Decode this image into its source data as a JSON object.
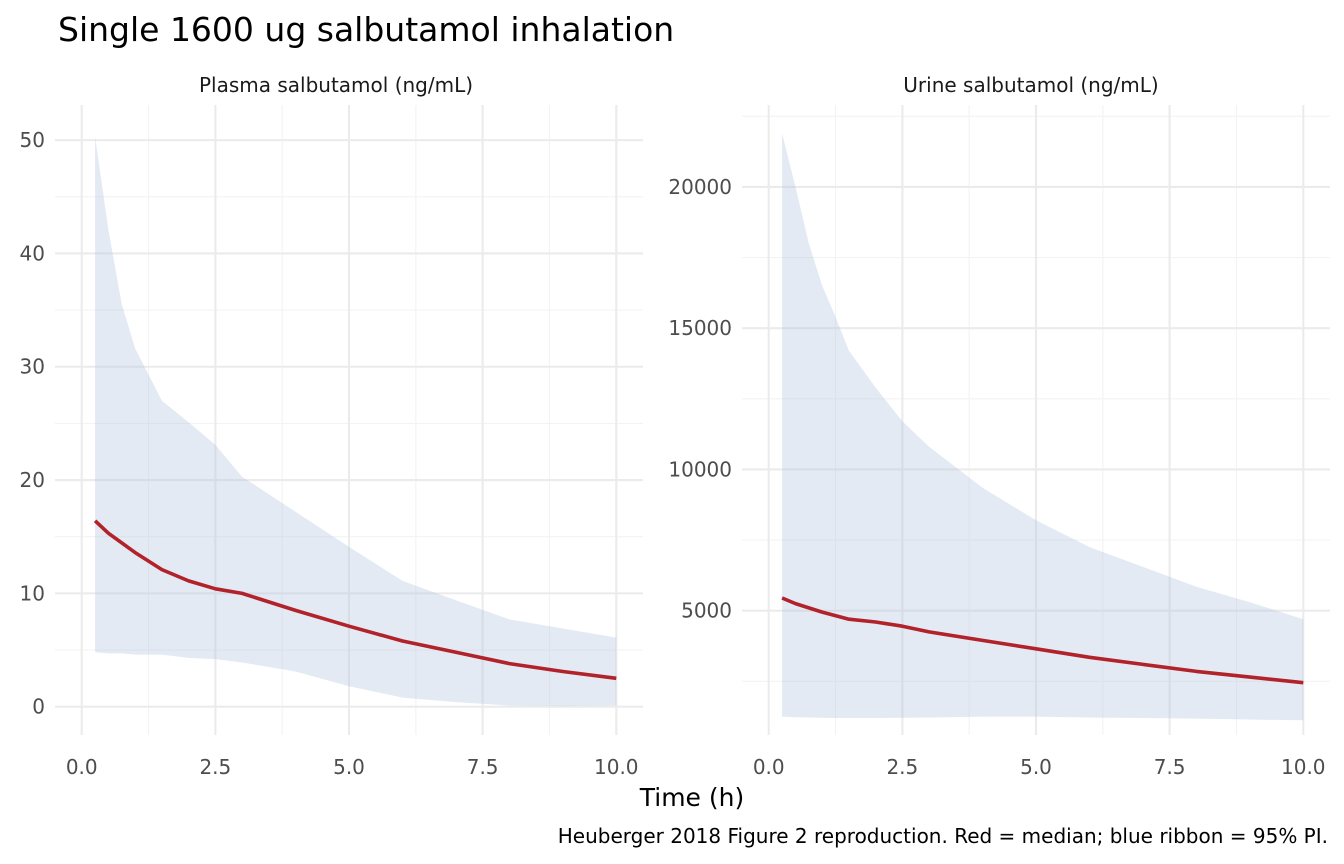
{
  "title": "Single 1600 ug salbutamol inhalation",
  "xlabel": "Time (h)",
  "caption": "Heuberger 2018 Figure 2 reproduction. Red = median; blue ribbon = 95% PI.",
  "colors": {
    "median": "#b2222a",
    "ribbon": "#b0c4de",
    "grid": "#ebebeb"
  },
  "chart_data": [
    {
      "type": "line",
      "title": "Plasma salbutamol (ng/mL)",
      "xlabel": "Time (h)",
      "ylabel": "",
      "xlim": [
        -0.5,
        10.5
      ],
      "ylim": [
        -2.5,
        53.1
      ],
      "x_ticks": [
        0,
        2.5,
        5,
        7.5,
        10
      ],
      "x_tick_labels": [
        "0.0",
        "2.5",
        "5.0",
        "7.5",
        "10.0"
      ],
      "y_ticks": [
        0,
        10,
        20,
        30,
        40,
        50
      ],
      "y_tick_labels": [
        "0",
        "10",
        "20",
        "30",
        "40",
        "50"
      ],
      "grid": true,
      "series": [
        {
          "name": "median",
          "kind": "line",
          "x": [
            0.25,
            0.5,
            1,
            1.5,
            2,
            2.5,
            3,
            4,
            5,
            6,
            7,
            8,
            9,
            10
          ],
          "y": [
            16.4,
            15.3,
            13.6,
            12.1,
            11.1,
            10.4,
            10.0,
            8.5,
            7.1,
            5.8,
            4.8,
            3.8,
            3.1,
            2.5
          ]
        },
        {
          "name": "95% PI",
          "kind": "ribbon",
          "x": [
            0.25,
            0.5,
            0.75,
            1,
            1.5,
            2,
            2.5,
            3,
            4,
            5,
            6,
            7,
            8,
            9,
            10
          ],
          "upper": [
            50.3,
            42.0,
            35.5,
            31.6,
            27.0,
            25.1,
            23.1,
            20.3,
            17.2,
            14.1,
            11.1,
            9.4,
            7.7,
            6.9,
            6.1
          ],
          "lower": [
            4.8,
            4.7,
            4.7,
            4.6,
            4.6,
            4.3,
            4.2,
            3.9,
            3.1,
            1.8,
            0.8,
            0.4,
            0.1,
            0.05,
            0.1
          ]
        }
      ]
    },
    {
      "type": "line",
      "title": "Urine salbutamol (ng/mL)",
      "xlabel": "Time (h)",
      "ylabel": "",
      "xlim": [
        -0.5,
        10.5
      ],
      "ylim": [
        600,
        22900
      ],
      "x_ticks": [
        0,
        2.5,
        5,
        7.5,
        10
      ],
      "x_tick_labels": [
        "0.0",
        "2.5",
        "5.0",
        "7.5",
        "10.0"
      ],
      "y_ticks": [
        5000,
        10000,
        15000,
        20000
      ],
      "y_tick_labels": [
        "5000",
        "10000",
        "15000",
        "20000"
      ],
      "grid": true,
      "series": [
        {
          "name": "median",
          "kind": "line",
          "x": [
            0.25,
            0.5,
            1,
            1.5,
            2,
            2.5,
            3,
            4,
            5,
            6,
            7,
            8,
            9,
            10
          ],
          "y": [
            5450,
            5250,
            4950,
            4700,
            4600,
            4450,
            4250,
            3950,
            3650,
            3350,
            3100,
            2850,
            2650,
            2450
          ]
        },
        {
          "name": "95% PI",
          "kind": "ribbon",
          "x": [
            0.25,
            0.5,
            0.75,
            1,
            1.25,
            1.5,
            2,
            2.5,
            3,
            4,
            5,
            6,
            7,
            8,
            9,
            10
          ],
          "upper": [
            21900,
            20000,
            18000,
            16500,
            15400,
            14200,
            12900,
            11700,
            10800,
            9350,
            8200,
            7250,
            6550,
            5850,
            5300,
            4700
          ],
          "lower": [
            1250,
            1230,
            1220,
            1210,
            1200,
            1200,
            1200,
            1210,
            1220,
            1250,
            1250,
            1220,
            1200,
            1180,
            1150,
            1120
          ]
        }
      ]
    }
  ]
}
